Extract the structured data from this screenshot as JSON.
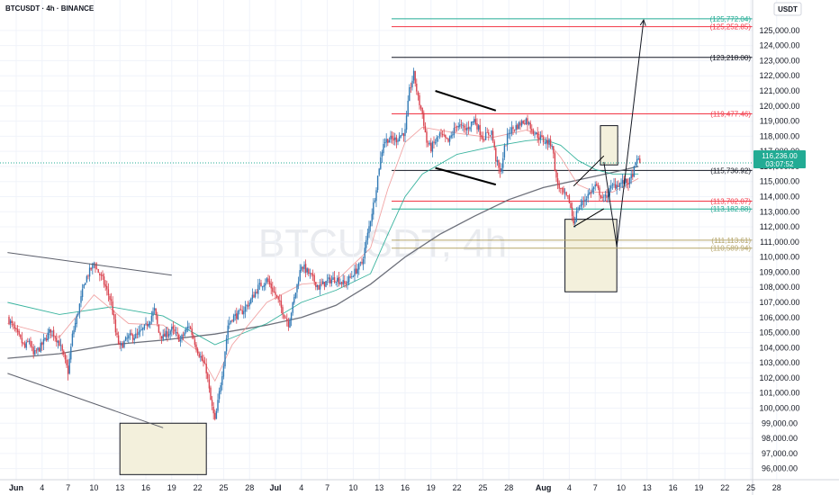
{
  "header": {
    "symbol": "BTCUSDT · 4h · BINANCE"
  },
  "watermark": "BTCUSDT, 4h",
  "currency_badge": "USDT",
  "price_tag": {
    "price": "116,236.00",
    "countdown": "03:07:52",
    "color": "#22ab94"
  },
  "chart_data": {
    "type": "candlestick",
    "title": "BTCUSDT · 4h · BINANCE",
    "ylim": [
      95500,
      126600
    ],
    "yticks": [
      96000,
      97000,
      98000,
      99000,
      100000,
      101000,
      102000,
      103000,
      104000,
      105000,
      106000,
      107000,
      108000,
      109000,
      110000,
      111000,
      112000,
      113000,
      114000,
      115000,
      116000,
      117000,
      118000,
      119000,
      120000,
      121000,
      122000,
      123000,
      124000,
      125000
    ],
    "x_ticks": [
      {
        "day": 1,
        "label": "Jun"
      },
      {
        "day": 4,
        "label": "4"
      },
      {
        "day": 7,
        "label": "7"
      },
      {
        "day": 10,
        "label": "10"
      },
      {
        "day": 13,
        "label": "13"
      },
      {
        "day": 16,
        "label": "16"
      },
      {
        "day": 19,
        "label": "19"
      },
      {
        "day": 22,
        "label": "22"
      },
      {
        "day": 25,
        "label": "25"
      },
      {
        "day": 28,
        "label": "28"
      },
      {
        "day": 31,
        "label": "Jul"
      },
      {
        "day": 34,
        "label": "4"
      },
      {
        "day": 37,
        "label": "7"
      },
      {
        "day": 40,
        "label": "10"
      },
      {
        "day": 43,
        "label": "13"
      },
      {
        "day": 46,
        "label": "16"
      },
      {
        "day": 49,
        "label": "19"
      },
      {
        "day": 52,
        "label": "22"
      },
      {
        "day": 55,
        "label": "25"
      },
      {
        "day": 58,
        "label": "28"
      },
      {
        "day": 62,
        "label": "Aug"
      },
      {
        "day": 65,
        "label": "4"
      },
      {
        "day": 68,
        "label": "7"
      },
      {
        "day": 71,
        "label": "10"
      },
      {
        "day": 74,
        "label": "13"
      },
      {
        "day": 77,
        "label": "16"
      },
      {
        "day": 80,
        "label": "19"
      },
      {
        "day": 83,
        "label": "22"
      },
      {
        "day": 86,
        "label": "25"
      },
      {
        "day": 89,
        "label": "28"
      }
    ],
    "close_path": [
      [
        0,
        106000
      ],
      [
        1,
        105000
      ],
      [
        2,
        104000
      ],
      [
        2.5,
        104500
      ],
      [
        3,
        103500
      ],
      [
        4,
        104200
      ],
      [
        5,
        105200
      ],
      [
        6,
        104300
      ],
      [
        7,
        102400
      ],
      [
        7.5,
        104800
      ],
      [
        8,
        106000
      ],
      [
        9,
        108500
      ],
      [
        10,
        109600
      ],
      [
        10.5,
        109000
      ],
      [
        11,
        108500
      ],
      [
        12,
        107000
      ],
      [
        12.5,
        105000
      ],
      [
        13,
        104000
      ],
      [
        14,
        104700
      ],
      [
        15,
        104800
      ],
      [
        16,
        105400
      ],
      [
        17,
        106500
      ],
      [
        17.5,
        105000
      ],
      [
        18,
        104700
      ],
      [
        19,
        105200
      ],
      [
        20,
        104500
      ],
      [
        21,
        105500
      ],
      [
        22,
        103800
      ],
      [
        23,
        102500
      ],
      [
        23.5,
        100500
      ],
      [
        24,
        99100
      ],
      [
        24.5,
        101000
      ],
      [
        25,
        103000
      ],
      [
        25.5,
        105500
      ],
      [
        26,
        106000
      ],
      [
        27,
        106300
      ],
      [
        28,
        107000
      ],
      [
        29,
        108000
      ],
      [
        30,
        108500
      ],
      [
        31,
        107500
      ],
      [
        32,
        106200
      ],
      [
        32.5,
        105600
      ],
      [
        33,
        106800
      ],
      [
        34,
        109500
      ],
      [
        35,
        108800
      ],
      [
        36,
        108000
      ],
      [
        37,
        108400
      ],
      [
        38,
        108600
      ],
      [
        39,
        108200
      ],
      [
        40,
        108900
      ],
      [
        41,
        109600
      ],
      [
        41.5,
        111000
      ],
      [
        42,
        112500
      ],
      [
        42.5,
        114000
      ],
      [
        43,
        116000
      ],
      [
        43.5,
        117600
      ],
      [
        44,
        117800
      ],
      [
        45,
        117800
      ],
      [
        45.5,
        118100
      ],
      [
        46,
        118300
      ],
      [
        46.5,
        121000
      ],
      [
        47,
        122100
      ],
      [
        47.5,
        120500
      ],
      [
        48,
        119500
      ],
      [
        48.5,
        117600
      ],
      [
        49,
        117200
      ],
      [
        50,
        118100
      ],
      [
        51,
        117600
      ],
      [
        52,
        118800
      ],
      [
        53,
        118400
      ],
      [
        54,
        119100
      ],
      [
        55,
        117900
      ],
      [
        56,
        118300
      ],
      [
        56.5,
        116500
      ],
      [
        57,
        115500
      ],
      [
        57.5,
        117200
      ],
      [
        58,
        118300
      ],
      [
        59,
        118700
      ],
      [
        60,
        119100
      ],
      [
        61,
        118200
      ],
      [
        62,
        117700
      ],
      [
        63,
        117500
      ],
      [
        63.5,
        115100
      ],
      [
        64,
        114400
      ],
      [
        65,
        113700
      ],
      [
        65.5,
        112300
      ],
      [
        66,
        113200
      ],
      [
        67,
        114000
      ],
      [
        68,
        114700
      ],
      [
        69,
        113800
      ],
      [
        70,
        114700
      ],
      [
        71,
        114900
      ],
      [
        72,
        115000
      ],
      [
        72.5,
        115800
      ],
      [
        73,
        116700
      ],
      [
        73.2,
        116236
      ]
    ],
    "moving_averages": [
      {
        "name": "MA200",
        "color": "#5d606b",
        "points": [
          [
            0,
            103300
          ],
          [
            6,
            103600
          ],
          [
            12,
            104200
          ],
          [
            18,
            104500
          ],
          [
            24,
            104900
          ],
          [
            30,
            105500
          ],
          [
            34,
            106000
          ],
          [
            38,
            106800
          ],
          [
            42,
            108200
          ],
          [
            46,
            110000
          ],
          [
            50,
            111500
          ],
          [
            54,
            112700
          ],
          [
            58,
            113800
          ],
          [
            62,
            114600
          ],
          [
            66,
            115100
          ],
          [
            70,
            115600
          ],
          [
            73,
            116000
          ]
        ]
      },
      {
        "name": "MA50",
        "color": "#22ab94",
        "points": [
          [
            0,
            107000
          ],
          [
            6,
            106200
          ],
          [
            12,
            106700
          ],
          [
            18,
            106100
          ],
          [
            24,
            104200
          ],
          [
            30,
            105600
          ],
          [
            34,
            107000
          ],
          [
            38,
            107800
          ],
          [
            42,
            108900
          ],
          [
            44,
            111500
          ],
          [
            46,
            114000
          ],
          [
            48,
            115500
          ],
          [
            52,
            116800
          ],
          [
            56,
            117300
          ],
          [
            60,
            117700
          ],
          [
            62,
            117800
          ],
          [
            64,
            117400
          ],
          [
            66,
            116400
          ],
          [
            68,
            115800
          ],
          [
            70,
            115500
          ],
          [
            73,
            115500
          ]
        ]
      },
      {
        "name": "MA20",
        "color": "#ef9a9a",
        "points": [
          [
            0,
            105600
          ],
          [
            6,
            104700
          ],
          [
            10,
            107500
          ],
          [
            14,
            105600
          ],
          [
            18,
            105500
          ],
          [
            22,
            103800
          ],
          [
            24,
            101800
          ],
          [
            26,
            104200
          ],
          [
            30,
            107000
          ],
          [
            34,
            108200
          ],
          [
            38,
            108400
          ],
          [
            42,
            110600
          ],
          [
            44,
            114500
          ],
          [
            46,
            117600
          ],
          [
            48,
            118600
          ],
          [
            52,
            118200
          ],
          [
            56,
            117900
          ],
          [
            60,
            118400
          ],
          [
            62,
            118000
          ],
          [
            64,
            116600
          ],
          [
            66,
            114800
          ],
          [
            68,
            114300
          ],
          [
            70,
            114300
          ],
          [
            73,
            115200
          ]
        ]
      }
    ],
    "levels": [
      {
        "price": 125772.04,
        "label": "(125,772.04)",
        "color": "#22ab94"
      },
      {
        "price": 125252.85,
        "label": "(125,252.85)",
        "color": "#f23645"
      },
      {
        "price": 123218.0,
        "label": "(123,218.00)",
        "color": "#131722"
      },
      {
        "price": 119477.46,
        "label": "(119,477.46)",
        "color": "#f23645"
      },
      {
        "price": 115736.92,
        "label": "(115,736.92)",
        "color": "#131722"
      },
      {
        "price": 113702.07,
        "label": "(113,702.07)",
        "color": "#f23645"
      },
      {
        "price": 113182.88,
        "label": "(113,182.88)",
        "color": "#22ab94"
      },
      {
        "price": 111113.61,
        "label": "(111,113.61)",
        "color": "#b5a56a"
      },
      {
        "price": 110589.94,
        "label": "(110,589.94)",
        "color": "#b5a56a"
      }
    ],
    "zones": [
      {
        "d1": 13,
        "d2": 23,
        "p1": 95600,
        "p2": 99000
      },
      {
        "d1": 64.5,
        "d2": 70.5,
        "p1": 107700,
        "p2": 112500
      },
      {
        "d1": 68.6,
        "d2": 70.6,
        "p1": 116100,
        "p2": 118700
      }
    ],
    "trendlines": [
      {
        "points": [
          [
            0,
            110300
          ],
          [
            19,
            108800
          ]
        ],
        "color": "#5d606b",
        "width": 1
      },
      {
        "points": [
          [
            0,
            102300
          ],
          [
            18,
            98700
          ]
        ],
        "color": "#5d606b",
        "width": 1
      },
      {
        "points": [
          [
            49.5,
            121000
          ],
          [
            56.5,
            119700
          ]
        ],
        "color": "#000000",
        "width": 2
      },
      {
        "points": [
          [
            49.5,
            115900
          ],
          [
            56.5,
            114800
          ]
        ],
        "color": "#000000",
        "width": 2
      },
      {
        "points": [
          [
            65.5,
            112000
          ],
          [
            69,
            113200
          ]
        ],
        "color": "#000000",
        "width": 1
      },
      {
        "points": [
          [
            65.5,
            114700
          ],
          [
            69,
            116700
          ]
        ],
        "color": "#000000",
        "width": 1
      },
      {
        "points": [
          [
            69,
            116300
          ],
          [
            70.5,
            110700
          ],
          [
            73.6,
            125700
          ]
        ],
        "color": "#131722",
        "width": 1
      }
    ]
  }
}
